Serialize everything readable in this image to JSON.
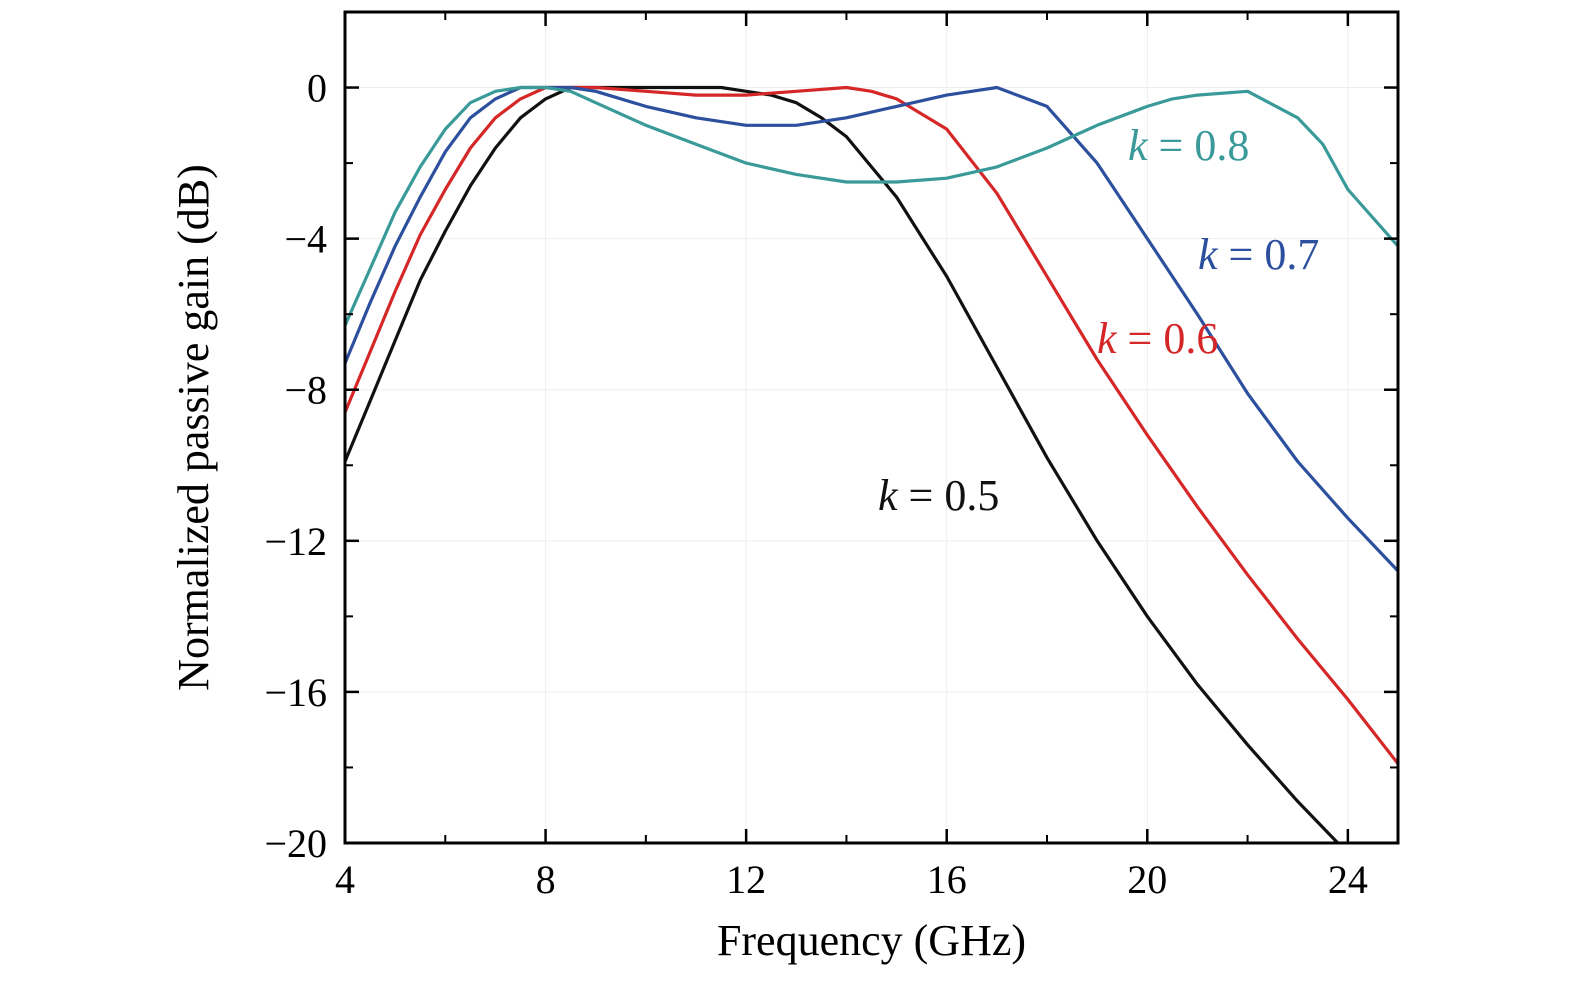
{
  "chart_data": {
    "type": "line",
    "xlabel": "Frequency (GHz)",
    "ylabel": "Normalized passive gain (dB)",
    "xlim": [
      4,
      25
    ],
    "ylim": [
      -20,
      2
    ],
    "xticks": [
      4,
      8,
      12,
      16,
      20,
      24
    ],
    "xtick_labels": [
      "4",
      "8",
      "12",
      "16",
      "20",
      "24"
    ],
    "yticks": [
      0,
      -4,
      -8,
      -12,
      -16,
      -20
    ],
    "ytick_labels": [
      "0",
      "−4",
      "−8",
      "−12",
      "−16",
      "−20"
    ],
    "grid": true,
    "series": [
      {
        "name": "k = 0.5",
        "label_k": "k",
        "label_rest": " = 0.5",
        "color": "#111111",
        "x": [
          4,
          4.5,
          5,
          5.5,
          6,
          6.5,
          7,
          7.5,
          8,
          8.5,
          9,
          9.5,
          10,
          11,
          11.5,
          12,
          12.5,
          13,
          13.5,
          14,
          14.5,
          15,
          16,
          17,
          18,
          19,
          20,
          21,
          22,
          23,
          23.8
        ],
        "y": [
          -9.9,
          -8.3,
          -6.7,
          -5.1,
          -3.8,
          -2.6,
          -1.6,
          -0.8,
          -0.3,
          0,
          0,
          0,
          0,
          0,
          0,
          -0.1,
          -0.2,
          -0.4,
          -0.8,
          -1.3,
          -2.1,
          -2.9,
          -5.0,
          -7.4,
          -9.8,
          -12.0,
          -14.0,
          -15.8,
          -17.4,
          -18.9,
          -20.0
        ]
      },
      {
        "name": "k = 0.6",
        "label_k": "k",
        "label_rest": " = 0.6",
        "color": "#d62728",
        "x": [
          4,
          4.5,
          5,
          5.5,
          6,
          6.5,
          7,
          7.5,
          8,
          8.5,
          9,
          10,
          11,
          12,
          13,
          14,
          14.5,
          15,
          16,
          17,
          18,
          19,
          20,
          21,
          22,
          23,
          24,
          25
        ],
        "y": [
          -8.6,
          -7.0,
          -5.4,
          -3.9,
          -2.7,
          -1.6,
          -0.8,
          -0.3,
          0,
          0,
          0,
          -0.1,
          -0.2,
          -0.2,
          -0.1,
          0,
          -0.1,
          -0.3,
          -1.1,
          -2.8,
          -5.0,
          -7.2,
          -9.2,
          -11.1,
          -12.9,
          -14.6,
          -16.2,
          -17.9
        ]
      },
      {
        "name": "k = 0.7",
        "label_k": "k",
        "label_rest": " = 0.7",
        "color": "#2c4f9e",
        "x": [
          4,
          4.5,
          5,
          5.5,
          6,
          6.5,
          7,
          7.5,
          8,
          8.5,
          9,
          10,
          11,
          12,
          13,
          14,
          15,
          16,
          16.5,
          17,
          18,
          19,
          20,
          21,
          22,
          23,
          24,
          25
        ],
        "y": [
          -7.3,
          -5.7,
          -4.2,
          -2.9,
          -1.7,
          -0.8,
          -0.3,
          0,
          0,
          0,
          -0.1,
          -0.5,
          -0.8,
          -1.0,
          -1.0,
          -0.8,
          -0.5,
          -0.2,
          -0.1,
          0,
          -0.5,
          -2.0,
          -4.0,
          -6.0,
          -8.1,
          -9.9,
          -11.4,
          -12.8
        ]
      },
      {
        "name": "k = 0.8",
        "label_k": "k",
        "label_rest": " = 0.8",
        "color": "#3a9a9a",
        "x": [
          4,
          4.5,
          5,
          5.5,
          6,
          6.5,
          7,
          7.5,
          8,
          8.5,
          9,
          10,
          11,
          12,
          13,
          14,
          15,
          16,
          17,
          18,
          19,
          20,
          20.5,
          21,
          22,
          23,
          23.5,
          24,
          25
        ],
        "y": [
          -6.3,
          -4.8,
          -3.3,
          -2.1,
          -1.1,
          -0.4,
          -0.1,
          0,
          0,
          -0.1,
          -0.4,
          -1.0,
          -1.5,
          -2.0,
          -2.3,
          -2.5,
          -2.5,
          -2.4,
          -2.1,
          -1.6,
          -1.0,
          -0.5,
          -0.3,
          -0.2,
          -0.1,
          -0.8,
          -1.5,
          -2.7,
          -4.2
        ]
      }
    ]
  }
}
